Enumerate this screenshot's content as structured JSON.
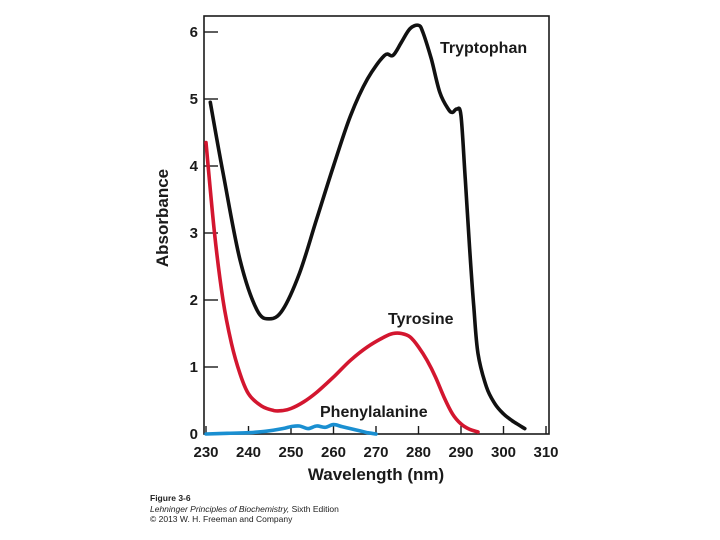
{
  "chart_data": {
    "type": "line",
    "title": "",
    "xlabel": "Wavelength (nm)",
    "ylabel": "Absorbance",
    "xlim": [
      230,
      310
    ],
    "ylim": [
      0,
      6
    ],
    "xticks": [
      230,
      240,
      250,
      260,
      270,
      280,
      290,
      300,
      310
    ],
    "yticks": [
      0,
      1,
      2,
      3,
      4,
      5,
      6
    ],
    "grid": false,
    "legend": "inline labels",
    "series": [
      {
        "name": "Tryptophan",
        "color": "#111111",
        "x": [
          231,
          234,
          238,
          242,
          245,
          248,
          252,
          256,
          260,
          264,
          268,
          272,
          274,
          276,
          278,
          280,
          281,
          283,
          285,
          287,
          288,
          289,
          290,
          291,
          292,
          293,
          294,
          296,
          298,
          300,
          302,
          304,
          305
        ],
        "y": [
          4.95,
          3.9,
          2.6,
          1.85,
          1.72,
          1.85,
          2.4,
          3.2,
          4.0,
          4.75,
          5.3,
          5.65,
          5.65,
          5.85,
          6.05,
          6.1,
          6.0,
          5.6,
          5.1,
          4.85,
          4.8,
          4.85,
          4.75,
          3.8,
          2.8,
          1.9,
          1.2,
          0.7,
          0.45,
          0.3,
          0.2,
          0.12,
          0.08
        ]
      },
      {
        "name": "Tyrosine",
        "color": "#d3162f",
        "x": [
          230,
          232,
          234,
          236,
          238,
          240,
          243,
          246,
          248,
          250,
          253,
          256,
          260,
          264,
          268,
          272,
          274,
          276,
          278,
          280,
          282,
          284,
          286,
          288,
          290,
          292,
          294
        ],
        "y": [
          4.35,
          3.0,
          2.0,
          1.35,
          0.9,
          0.6,
          0.42,
          0.35,
          0.35,
          0.38,
          0.48,
          0.62,
          0.85,
          1.1,
          1.3,
          1.45,
          1.5,
          1.5,
          1.45,
          1.3,
          1.1,
          0.85,
          0.55,
          0.3,
          0.15,
          0.07,
          0.03
        ]
      },
      {
        "name": "Phenylalanine",
        "color": "#1a8fd1",
        "x": [
          230,
          235,
          240,
          244,
          248,
          250,
          252,
          254,
          256,
          258,
          260,
          262,
          264,
          266,
          268,
          270
        ],
        "y": [
          0.0,
          0.01,
          0.02,
          0.04,
          0.08,
          0.11,
          0.12,
          0.08,
          0.12,
          0.1,
          0.14,
          0.11,
          0.08,
          0.05,
          0.02,
          0.0
        ]
      }
    ]
  },
  "caption": {
    "figure": "Figure 3-6",
    "book_title": "Lehninger Principles of Biochemistry,",
    "edition": " Sixth Edition",
    "copyright": "© 2013 W. H. Freeman and Company"
  }
}
